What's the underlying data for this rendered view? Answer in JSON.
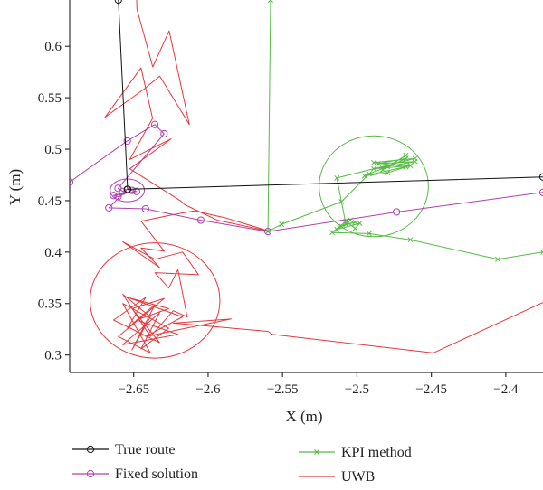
{
  "chart_data": {
    "type": "line",
    "xlabel": "X (m)",
    "ylabel": "Y (m)",
    "xlim": [
      -2.693,
      -2.375
    ],
    "ylim": [
      0.283,
      0.645
    ],
    "xticks": [
      -2.65,
      -2.6,
      -2.55,
      -2.5,
      -2.45,
      -2.4
    ],
    "xtick_labels": [
      "−2.65",
      "−2.6",
      "−2.55",
      "−2.5",
      "−2.45",
      "−2.4"
    ],
    "yticks": [
      0.3,
      0.35,
      0.4,
      0.45,
      0.5,
      0.55,
      0.6
    ],
    "ytick_labels": [
      "0.3",
      "0.35",
      "0.4",
      "0.45",
      "0.5",
      "0.55",
      "0.6"
    ],
    "grid": false,
    "legend_position": "bottom",
    "series": [
      {
        "name": "True route",
        "color": "#111111",
        "marker": "circle",
        "points": [
          [
            -2.6603,
            0.645
          ],
          [
            -2.6541,
            0.461
          ],
          [
            -2.375,
            0.473
          ]
        ]
      },
      {
        "name": "Fixed solution",
        "color": "#b040b0",
        "marker": "circle",
        "points": [
          [
            -2.693,
            0.468
          ],
          [
            -2.6543,
            0.508
          ],
          [
            -2.6358,
            0.524
          ],
          [
            -2.6296,
            0.515
          ],
          [
            -2.6605,
            0.462
          ],
          [
            -2.6574,
            0.459
          ],
          [
            -2.6543,
            0.461
          ],
          [
            -2.6512,
            0.46
          ],
          [
            -2.6481,
            0.459
          ],
          [
            -2.6636,
            0.455
          ],
          [
            -2.6605,
            0.454
          ],
          [
            -2.6543,
            0.461
          ],
          [
            -2.6667,
            0.443
          ],
          [
            -2.642,
            0.442
          ],
          [
            -2.6049,
            0.431
          ],
          [
            -2.5598,
            0.42
          ],
          [
            -2.4734,
            0.439
          ],
          [
            -2.375,
            0.458
          ]
        ]
      },
      {
        "name": "KPI method",
        "color": "#55bb44",
        "marker": "x",
        "points": [
          [
            -2.558,
            0.645
          ],
          [
            -2.5598,
            0.42
          ],
          [
            -2.5506,
            0.427
          ],
          [
            -2.5104,
            0.449
          ],
          [
            -2.4918,
            0.476
          ],
          [
            -2.4795,
            0.483
          ],
          [
            -2.4672,
            0.494
          ],
          [
            -2.4826,
            0.48
          ],
          [
            -2.4671,
            0.491
          ],
          [
            -2.4856,
            0.486
          ],
          [
            -2.461,
            0.488
          ],
          [
            -2.4887,
            0.481
          ],
          [
            -2.4641,
            0.484
          ],
          [
            -2.4795,
            0.477
          ],
          [
            -2.4949,
            0.474
          ],
          [
            -2.4671,
            0.483
          ],
          [
            -2.4887,
            0.487
          ],
          [
            -2.461,
            0.491
          ],
          [
            -2.5135,
            0.472
          ],
          [
            -2.5074,
            0.427
          ],
          [
            -2.5012,
            0.429
          ],
          [
            -2.5104,
            0.425
          ],
          [
            -2.5043,
            0.431
          ],
          [
            -2.5135,
            0.422
          ],
          [
            -2.4981,
            0.428
          ],
          [
            -2.5012,
            0.423
          ],
          [
            -2.5074,
            0.43
          ],
          [
            -2.5166,
            0.419
          ],
          [
            -2.4918,
            0.418
          ],
          [
            -2.4641,
            0.412
          ],
          [
            -2.4054,
            0.393
          ],
          [
            -2.375,
            0.4
          ]
        ]
      },
      {
        "name": "UWB",
        "color": "#e8383c",
        "marker": "none",
        "points": [
          [
            -2.648,
            0.645
          ],
          [
            -2.6478,
            0.636
          ],
          [
            -2.6372,
            0.58
          ],
          [
            -2.6262,
            0.615
          ],
          [
            -2.6126,
            0.524
          ],
          [
            -2.6325,
            0.571
          ],
          [
            -2.6434,
            0.558
          ],
          [
            -2.6693,
            0.531
          ],
          [
            -2.6451,
            0.579
          ],
          [
            -2.6373,
            0.53
          ],
          [
            -2.6526,
            0.49
          ],
          [
            -2.6249,
            0.51
          ],
          [
            -2.6526,
            0.481
          ],
          [
            -2.6187,
            0.45
          ],
          [
            -2.6156,
            0.446
          ],
          [
            -2.5938,
            0.431
          ],
          [
            -2.558,
            0.42
          ],
          [
            -2.5876,
            0.433
          ],
          [
            -2.6094,
            0.44
          ],
          [
            -2.6249,
            0.436
          ],
          [
            -2.645,
            0.43
          ],
          [
            -2.6295,
            0.401
          ],
          [
            -2.645,
            0.404
          ],
          [
            -2.6326,
            0.385
          ],
          [
            -2.6573,
            0.41
          ],
          [
            -2.6357,
            0.393
          ],
          [
            -2.6172,
            0.4
          ],
          [
            -2.6064,
            0.378
          ],
          [
            -2.6357,
            0.38
          ],
          [
            -2.6265,
            0.365
          ],
          [
            -2.6203,
            0.383
          ],
          [
            -2.6141,
            0.337
          ],
          [
            -2.6234,
            0.343
          ],
          [
            -2.6388,
            0.318
          ],
          [
            -2.6573,
            0.359
          ],
          [
            -2.6388,
            0.337
          ],
          [
            -2.6511,
            0.305
          ],
          [
            -2.6357,
            0.349
          ],
          [
            -2.6542,
            0.326
          ],
          [
            -2.6419,
            0.356
          ],
          [
            -2.6635,
            0.334
          ],
          [
            -2.6326,
            0.312
          ],
          [
            -2.6511,
            0.345
          ],
          [
            -2.6295,
            0.355
          ],
          [
            -2.6604,
            0.318
          ],
          [
            -2.6388,
            0.302
          ],
          [
            -2.6573,
            0.35
          ],
          [
            -2.6265,
            0.326
          ],
          [
            -2.645,
            0.306
          ],
          [
            -2.6326,
            0.341
          ],
          [
            -2.6573,
            0.31
          ],
          [
            -2.6203,
            0.32
          ],
          [
            -2.6481,
            0.334
          ],
          [
            -2.6265,
            0.345
          ],
          [
            -2.6542,
            0.356
          ],
          [
            -2.6172,
            0.337
          ],
          [
            -2.6419,
            0.318
          ],
          [
            -2.5845,
            0.335
          ],
          [
            -2.6234,
            0.331
          ],
          [
            -2.5598,
            0.323
          ],
          [
            -2.5567,
            0.32
          ],
          [
            -2.4487,
            0.302
          ],
          [
            -2.375,
            0.351
          ]
        ]
      }
    ],
    "ellipses": [
      {
        "series": "Fixed solution",
        "cx": -2.6543,
        "cy": 0.46,
        "rx": 0.0115,
        "ry": 0.011
      },
      {
        "series": "KPI method",
        "cx": -2.4887,
        "cy": 0.464,
        "rx": 0.0367,
        "ry": 0.049
      },
      {
        "series": "UWB",
        "cx": -2.6357,
        "cy": 0.353,
        "rx": 0.0436,
        "ry": 0.056
      }
    ]
  }
}
